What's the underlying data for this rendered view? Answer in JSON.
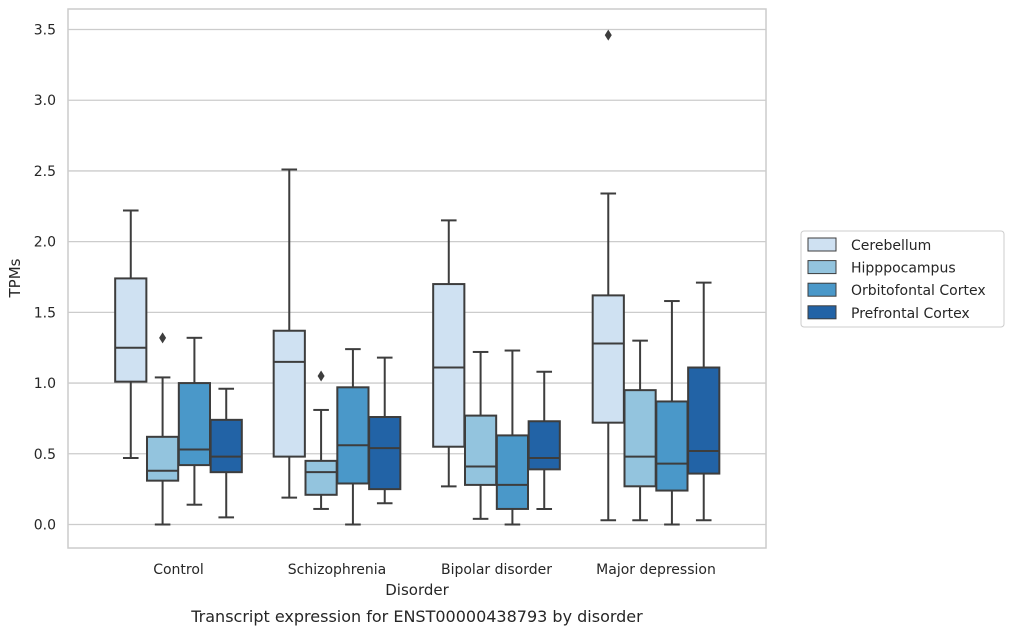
{
  "chart_data": {
    "type": "box",
    "xlabel": "Disorder",
    "ylabel": "TPMs",
    "caption": "Transcript expression for ENST00000438793 by disorder",
    "ylim": [
      -0.17,
      3.64
    ],
    "yticks": [
      "0.0",
      "0.5",
      "1.0",
      "1.5",
      "2.0",
      "2.5",
      "3.0",
      "3.5"
    ],
    "grid": "horizontal",
    "legend_position": "right",
    "categories": [
      "Control",
      "Schizophrenia",
      "Bipolar disorder",
      "Major depression"
    ],
    "series": [
      {
        "name": "Cerebellum",
        "color": "#cfe1f2",
        "boxes": [
          {
            "whislo": 0.47,
            "q1": 1.01,
            "med": 1.25,
            "q3": 1.74,
            "whishi": 2.22,
            "fliers": []
          },
          {
            "whislo": 0.19,
            "q1": 0.48,
            "med": 1.15,
            "q3": 1.37,
            "whishi": 2.51,
            "fliers": []
          },
          {
            "whislo": 0.27,
            "q1": 0.55,
            "med": 1.11,
            "q3": 1.7,
            "whishi": 2.15,
            "fliers": []
          },
          {
            "whislo": 0.03,
            "q1": 0.72,
            "med": 1.28,
            "q3": 1.62,
            "whishi": 2.34,
            "fliers": [
              3.46
            ]
          }
        ]
      },
      {
        "name": "Hipppocampus",
        "color": "#93c4de",
        "boxes": [
          {
            "whislo": 0.0,
            "q1": 0.31,
            "med": 0.38,
            "q3": 0.62,
            "whishi": 1.04,
            "fliers": [
              1.32
            ]
          },
          {
            "whislo": 0.11,
            "q1": 0.21,
            "med": 0.37,
            "q3": 0.45,
            "whishi": 0.81,
            "fliers": [
              1.05
            ]
          },
          {
            "whislo": 0.04,
            "q1": 0.28,
            "med": 0.41,
            "q3": 0.77,
            "whishi": 1.22,
            "fliers": []
          },
          {
            "whislo": 0.03,
            "q1": 0.27,
            "med": 0.48,
            "q3": 0.95,
            "whishi": 1.3,
            "fliers": []
          }
        ]
      },
      {
        "name": "Orbitofontal Cortex",
        "color": "#4a98c9",
        "boxes": [
          {
            "whislo": 0.14,
            "q1": 0.42,
            "med": 0.53,
            "q3": 1.0,
            "whishi": 1.32,
            "fliers": []
          },
          {
            "whislo": 0.0,
            "q1": 0.29,
            "med": 0.56,
            "q3": 0.97,
            "whishi": 1.24,
            "fliers": []
          },
          {
            "whislo": 0.0,
            "q1": 0.11,
            "med": 0.28,
            "q3": 0.63,
            "whishi": 1.23,
            "fliers": []
          },
          {
            "whislo": 0.0,
            "q1": 0.24,
            "med": 0.43,
            "q3": 0.87,
            "whishi": 1.58,
            "fliers": []
          }
        ]
      },
      {
        "name": "Prefrontal Cortex",
        "color": "#2263a6",
        "boxes": [
          {
            "whislo": 0.05,
            "q1": 0.37,
            "med": 0.48,
            "q3": 0.74,
            "whishi": 0.96,
            "fliers": []
          },
          {
            "whislo": 0.15,
            "q1": 0.25,
            "med": 0.54,
            "q3": 0.76,
            "whishi": 1.18,
            "fliers": []
          },
          {
            "whislo": 0.11,
            "q1": 0.39,
            "med": 0.47,
            "q3": 0.73,
            "whishi": 1.08,
            "fliers": []
          },
          {
            "whislo": 0.03,
            "q1": 0.36,
            "med": 0.52,
            "q3": 1.11,
            "whishi": 1.71,
            "fliers": []
          }
        ]
      }
    ]
  }
}
